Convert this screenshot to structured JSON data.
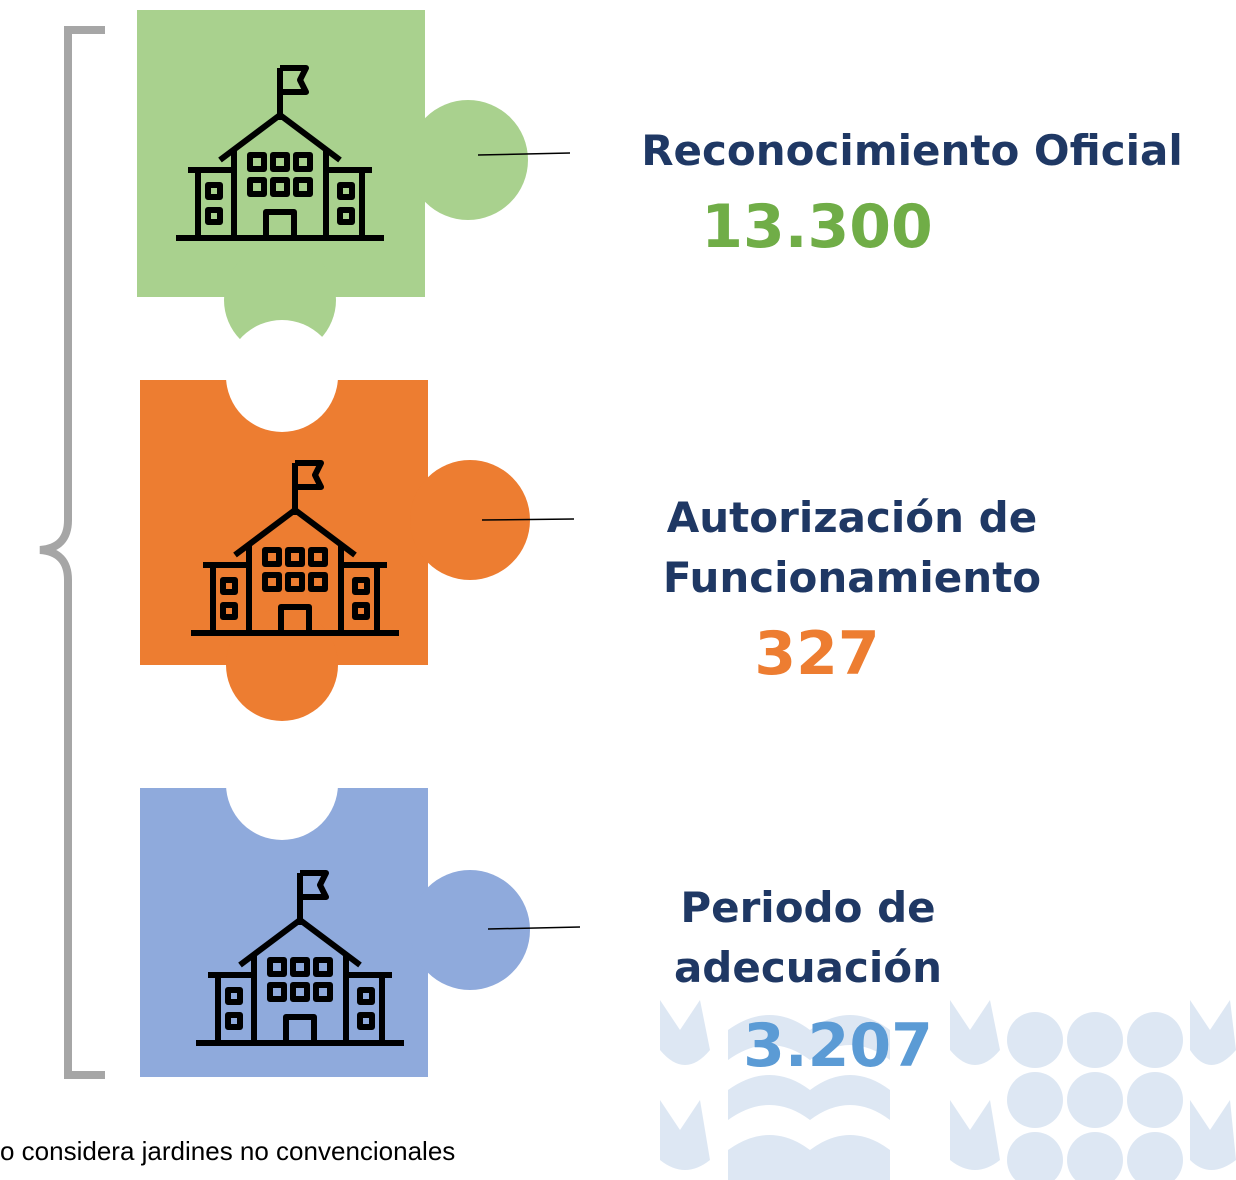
{
  "items": [
    {
      "label": [
        "Reconocimiento Oficial"
      ],
      "value": "13.300"
    },
    {
      "label": [
        "Autorización de",
        "Funcionamiento"
      ],
      "value": "327"
    },
    {
      "label": [
        "Periodo de",
        "adecuación"
      ],
      "value": "3.207"
    }
  ],
  "footnote": "o considera jardines no convencionales"
}
